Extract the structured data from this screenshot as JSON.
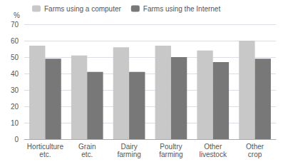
{
  "chart_data": {
    "type": "bar",
    "categories": [
      "Horticulture\netc.",
      "Grain\netc.",
      "Dairy\nfarming",
      "Poultry\nfarming",
      "Other\nlivestock",
      "Other\ncrop"
    ],
    "series": [
      {
        "name": "Farms using a computer",
        "color": "#c8c8c8",
        "values": [
          57,
          51,
          56,
          57,
          54,
          60
        ]
      },
      {
        "name": "Farms using the Internet",
        "color": "#787878",
        "values": [
          49,
          41,
          41,
          50,
          47,
          49
        ]
      }
    ],
    "ylabel": "%",
    "ylim": [
      0,
      70
    ],
    "yticks": [
      0,
      10,
      20,
      30,
      40,
      50,
      60,
      70
    ],
    "grid": true,
    "legend": "upper left"
  }
}
